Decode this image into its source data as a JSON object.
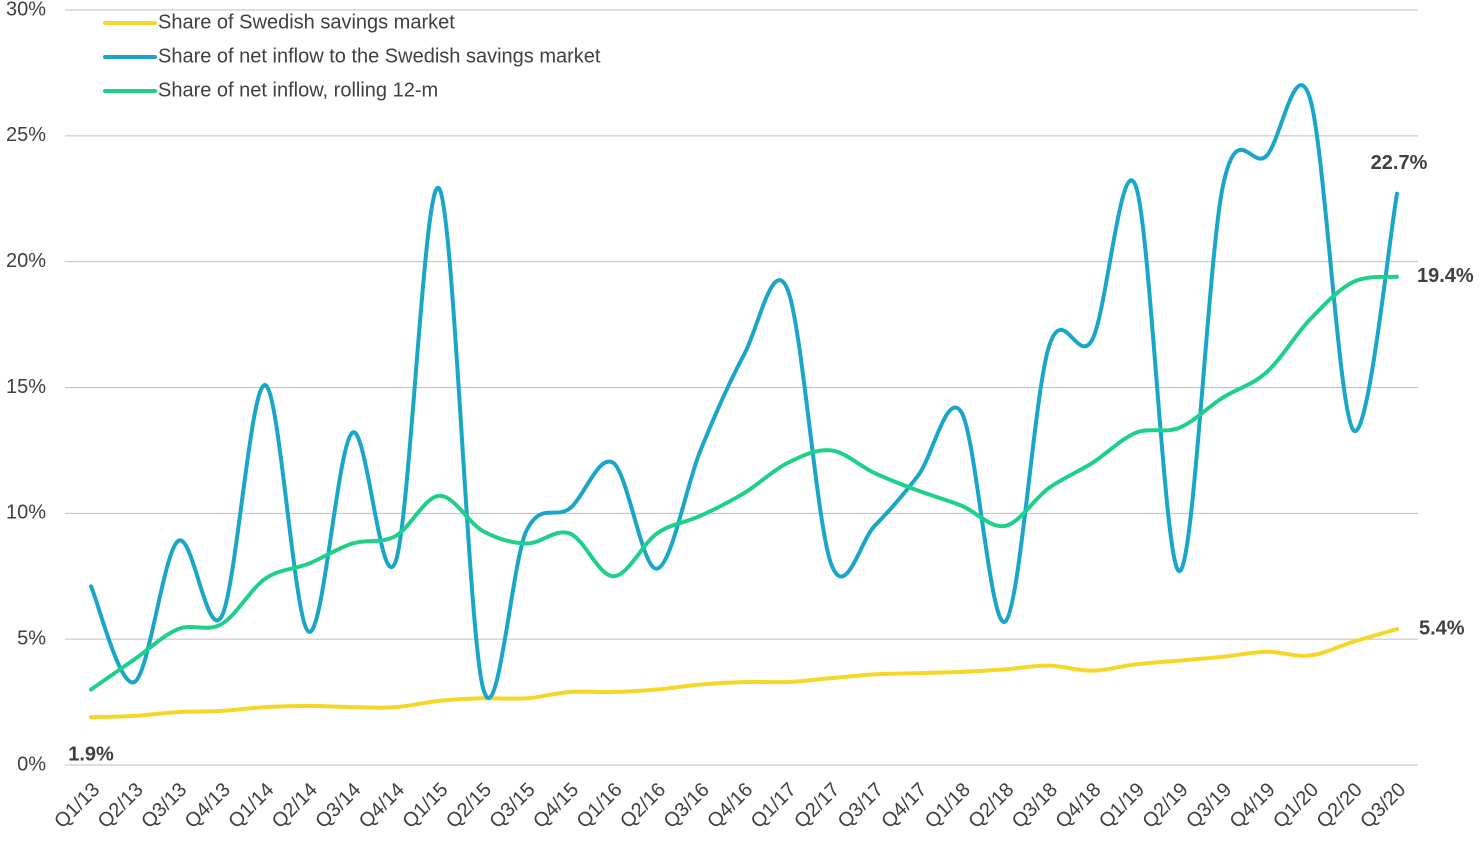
{
  "chart_data": {
    "type": "line",
    "categories": [
      "Q1/13",
      "Q2/13",
      "Q3/13",
      "Q4/13",
      "Q1/14",
      "Q2/14",
      "Q3/14",
      "Q4/14",
      "Q1/15",
      "Q2/15",
      "Q3/15",
      "Q4/15",
      "Q1/16",
      "Q2/16",
      "Q3/16",
      "Q4/16",
      "Q1/17",
      "Q2/17",
      "Q3/17",
      "Q4/17",
      "Q1/18",
      "Q2/18",
      "Q3/18",
      "Q4/18",
      "Q1/19",
      "Q2/19",
      "Q3/19",
      "Q4/19",
      "Q1/20",
      "Q2/20",
      "Q3/20"
    ],
    "series": [
      {
        "name": "Share of Swedish savings market",
        "color": "#f5d727",
        "values": [
          1.9,
          1.95,
          2.1,
          2.15,
          2.3,
          2.35,
          2.3,
          2.3,
          2.55,
          2.65,
          2.65,
          2.9,
          2.9,
          3.0,
          3.2,
          3.3,
          3.3,
          3.45,
          3.6,
          3.65,
          3.7,
          3.8,
          3.95,
          3.75,
          4.0,
          4.15,
          4.3,
          4.5,
          4.35,
          4.9,
          5.4
        ],
        "value_labels": [
          "1.9%",
          null,
          null,
          null,
          null,
          null,
          null,
          null,
          null,
          null,
          null,
          null,
          null,
          null,
          null,
          null,
          null,
          null,
          null,
          null,
          null,
          null,
          null,
          null,
          null,
          null,
          null,
          null,
          null,
          null,
          "5.4%"
        ]
      },
      {
        "name": "Share of net inflow to the Swedish savings market",
        "color": "#1aa6c8",
        "values": [
          7.1,
          3.3,
          8.9,
          5.9,
          15.1,
          5.3,
          13.2,
          8.1,
          22.9,
          3.1,
          9.3,
          10.2,
          12.0,
          7.8,
          12.5,
          16.3,
          18.9,
          8.0,
          9.5,
          11.5,
          14.0,
          5.7,
          16.6,
          16.9,
          23.0,
          7.7,
          23.0,
          24.2,
          26.5,
          13.3,
          22.7
        ],
        "value_labels": [
          null,
          null,
          null,
          null,
          null,
          null,
          null,
          null,
          null,
          null,
          null,
          null,
          null,
          null,
          null,
          null,
          null,
          null,
          null,
          null,
          null,
          null,
          null,
          null,
          null,
          null,
          null,
          null,
          null,
          null,
          "22.7%"
        ]
      },
      {
        "name": "Share of net inflow, rolling 12-m",
        "color": "#1ed08a",
        "values": [
          3.0,
          4.2,
          5.4,
          5.6,
          7.4,
          8.0,
          8.8,
          9.1,
          10.7,
          9.3,
          8.8,
          9.2,
          7.5,
          9.2,
          9.9,
          10.8,
          12.0,
          12.5,
          11.6,
          10.9,
          10.3,
          9.5,
          11.0,
          12.0,
          13.2,
          13.4,
          14.6,
          15.6,
          17.7,
          19.2,
          19.4
        ],
        "value_labels": [
          null,
          null,
          null,
          null,
          null,
          null,
          null,
          null,
          null,
          null,
          null,
          null,
          null,
          null,
          null,
          null,
          null,
          null,
          null,
          null,
          null,
          null,
          null,
          null,
          null,
          null,
          null,
          null,
          null,
          null,
          "19.4%"
        ]
      }
    ],
    "ylim": [
      0,
      30
    ],
    "yticks": [
      {
        "value": 0,
        "label": "0%"
      },
      {
        "value": 5,
        "label": "5%"
      },
      {
        "value": 10,
        "label": "10%"
      },
      {
        "value": 15,
        "label": "15%"
      },
      {
        "value": 20,
        "label": "20%"
      },
      {
        "value": 25,
        "label": "25%"
      },
      {
        "value": 30,
        "label": "30%"
      }
    ],
    "grid": true,
    "legend": "top-left"
  }
}
